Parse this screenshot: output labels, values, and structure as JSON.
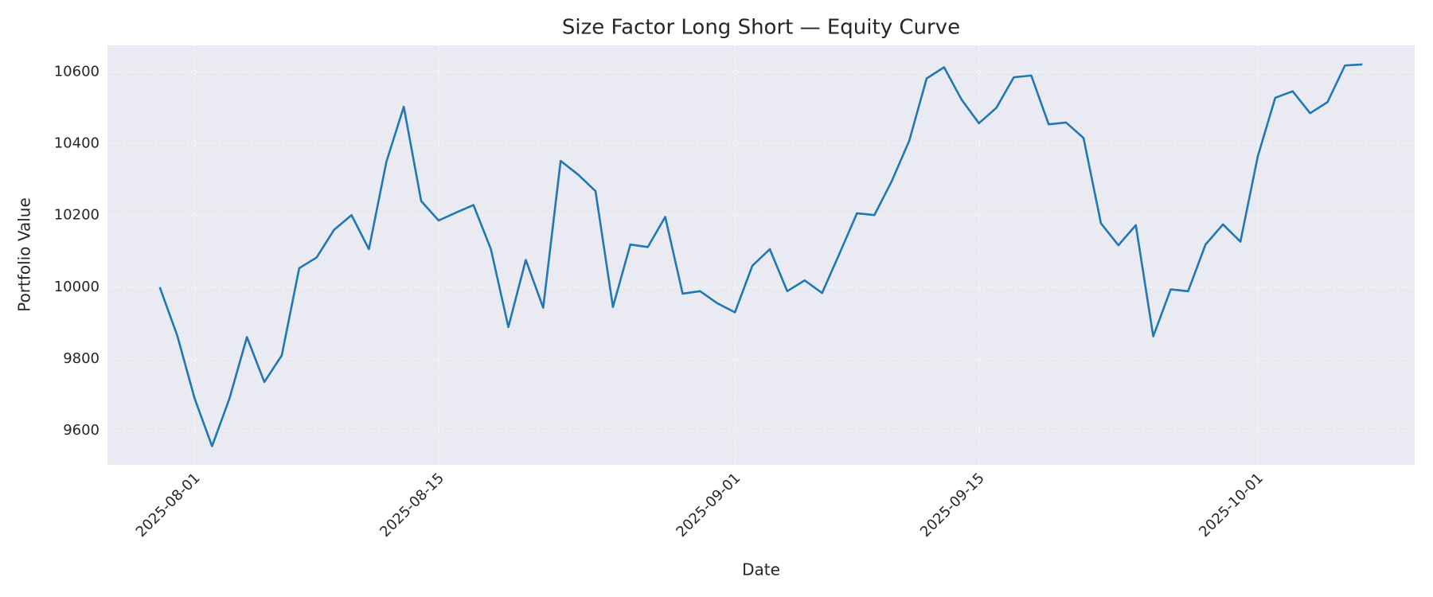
{
  "chart_data": {
    "type": "line",
    "title": "Size Factor Long Short — Equity Curve",
    "x_label": "Date",
    "y_label": "Portfolio Value",
    "x": [
      "2025-07-30",
      "2025-07-31",
      "2025-08-01",
      "2025-08-02",
      "2025-08-03",
      "2025-08-04",
      "2025-08-05",
      "2025-08-06",
      "2025-08-07",
      "2025-08-08",
      "2025-08-09",
      "2025-08-10",
      "2025-08-11",
      "2025-08-12",
      "2025-08-13",
      "2025-08-14",
      "2025-08-15",
      "2025-08-16",
      "2025-08-17",
      "2025-08-18",
      "2025-08-19",
      "2025-08-20",
      "2025-08-21",
      "2025-08-22",
      "2025-08-23",
      "2025-08-24",
      "2025-08-25",
      "2025-08-26",
      "2025-08-27",
      "2025-08-28",
      "2025-08-29",
      "2025-08-30",
      "2025-08-31",
      "2025-09-01",
      "2025-09-02",
      "2025-09-03",
      "2025-09-04",
      "2025-09-05",
      "2025-09-06",
      "2025-09-07",
      "2025-09-08",
      "2025-09-09",
      "2025-09-10",
      "2025-09-11",
      "2025-09-12",
      "2025-09-13",
      "2025-09-14",
      "2025-09-15",
      "2025-09-16",
      "2025-09-17",
      "2025-09-18",
      "2025-09-19",
      "2025-09-20",
      "2025-09-21",
      "2025-09-22",
      "2025-09-23",
      "2025-09-24",
      "2025-09-25",
      "2025-09-26",
      "2025-09-27",
      "2025-09-28",
      "2025-09-29",
      "2025-09-30",
      "2025-10-01",
      "2025-10-02",
      "2025-10-03",
      "2025-10-04",
      "2025-10-05",
      "2025-10-06",
      "2025-10-07"
    ],
    "values": [
      10000,
      9866,
      9690,
      9557,
      9690,
      9861,
      9736,
      9810,
      10053,
      10083,
      10160,
      10201,
      10106,
      10349,
      10503,
      10240,
      10186,
      10208,
      10229,
      10106,
      9889,
      10076,
      9943,
      10352,
      10314,
      10268,
      9945,
      10119,
      10112,
      10196,
      9982,
      9989,
      9955,
      9930,
      10060,
      10106,
      9989,
      10019,
      9984,
      10094,
      10206,
      10201,
      10296,
      10408,
      10582,
      10613,
      10523,
      10457,
      10500,
      10585,
      10590,
      10454,
      10459,
      10416,
      10178,
      10117,
      10173,
      9863,
      9994,
      9989,
      10119,
      10175,
      10127,
      10365,
      10528,
      10546,
      10485,
      10516,
      10618,
      10621
    ],
    "color": "#1f77b4",
    "xlim": [
      "2025-07-27",
      "2025-10-10"
    ],
    "xticks": [
      "2025-08-01",
      "2025-08-15",
      "2025-09-01",
      "2025-09-15",
      "2025-10-01"
    ],
    "ylim": [
      9505,
      10674
    ],
    "yticks": [
      9600,
      9800,
      10000,
      10200,
      10400,
      10600
    ],
    "grid": true
  }
}
